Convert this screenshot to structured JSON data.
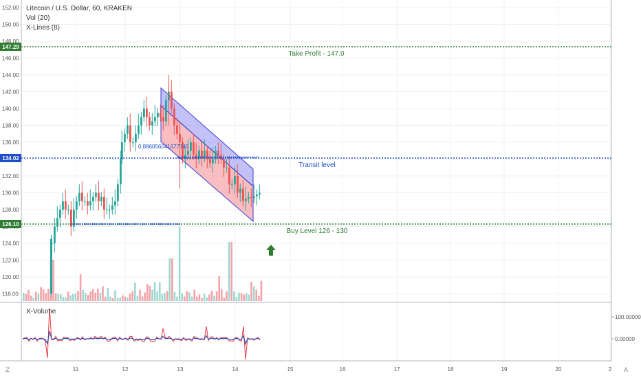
{
  "chart": {
    "symbol_line": "Litecoin / U.S. Dollar, 60, KRAKEN",
    "studies": [
      "Vol (20)",
      "X-Lines (8)"
    ],
    "sub_pane_title": "X-Volume",
    "price_axis_ticks": [
      "152.00",
      "150.00",
      "148.00",
      "146.00",
      "144.00",
      "142.00",
      "140.00",
      "138.00",
      "136.00",
      "134.00",
      "132.00",
      "130.00",
      "128.00",
      "126.00",
      "124.00",
      "122.00",
      "120.00",
      "118.00"
    ],
    "time_axis_ticks": [
      "11",
      "12",
      "13",
      "14",
      "15",
      "16",
      "17",
      "18",
      "19",
      "20",
      "2"
    ],
    "sub_axis_ticks": [
      "100.00000",
      "0.00000"
    ],
    "price_badges": [
      {
        "label": "147.29",
        "color": "#2e7d32"
      },
      {
        "label": "134.02",
        "color": "#1e4fc9"
      },
      {
        "label": "126.10",
        "color": "#2e7d32"
      }
    ],
    "annotations": {
      "take_profit": "Take Profit - 147.0",
      "transit": "Transit level",
      "buy": "Buy Level 126 - 130",
      "fib": "0.886056041677745"
    },
    "corner_labels": {
      "left": "Z",
      "right": "A"
    },
    "colors": {
      "up": "#26a69a",
      "down": "#ef5350",
      "up_vol": "#9fd8cf",
      "down_vol": "#f5a3a8"
    }
  }
}
